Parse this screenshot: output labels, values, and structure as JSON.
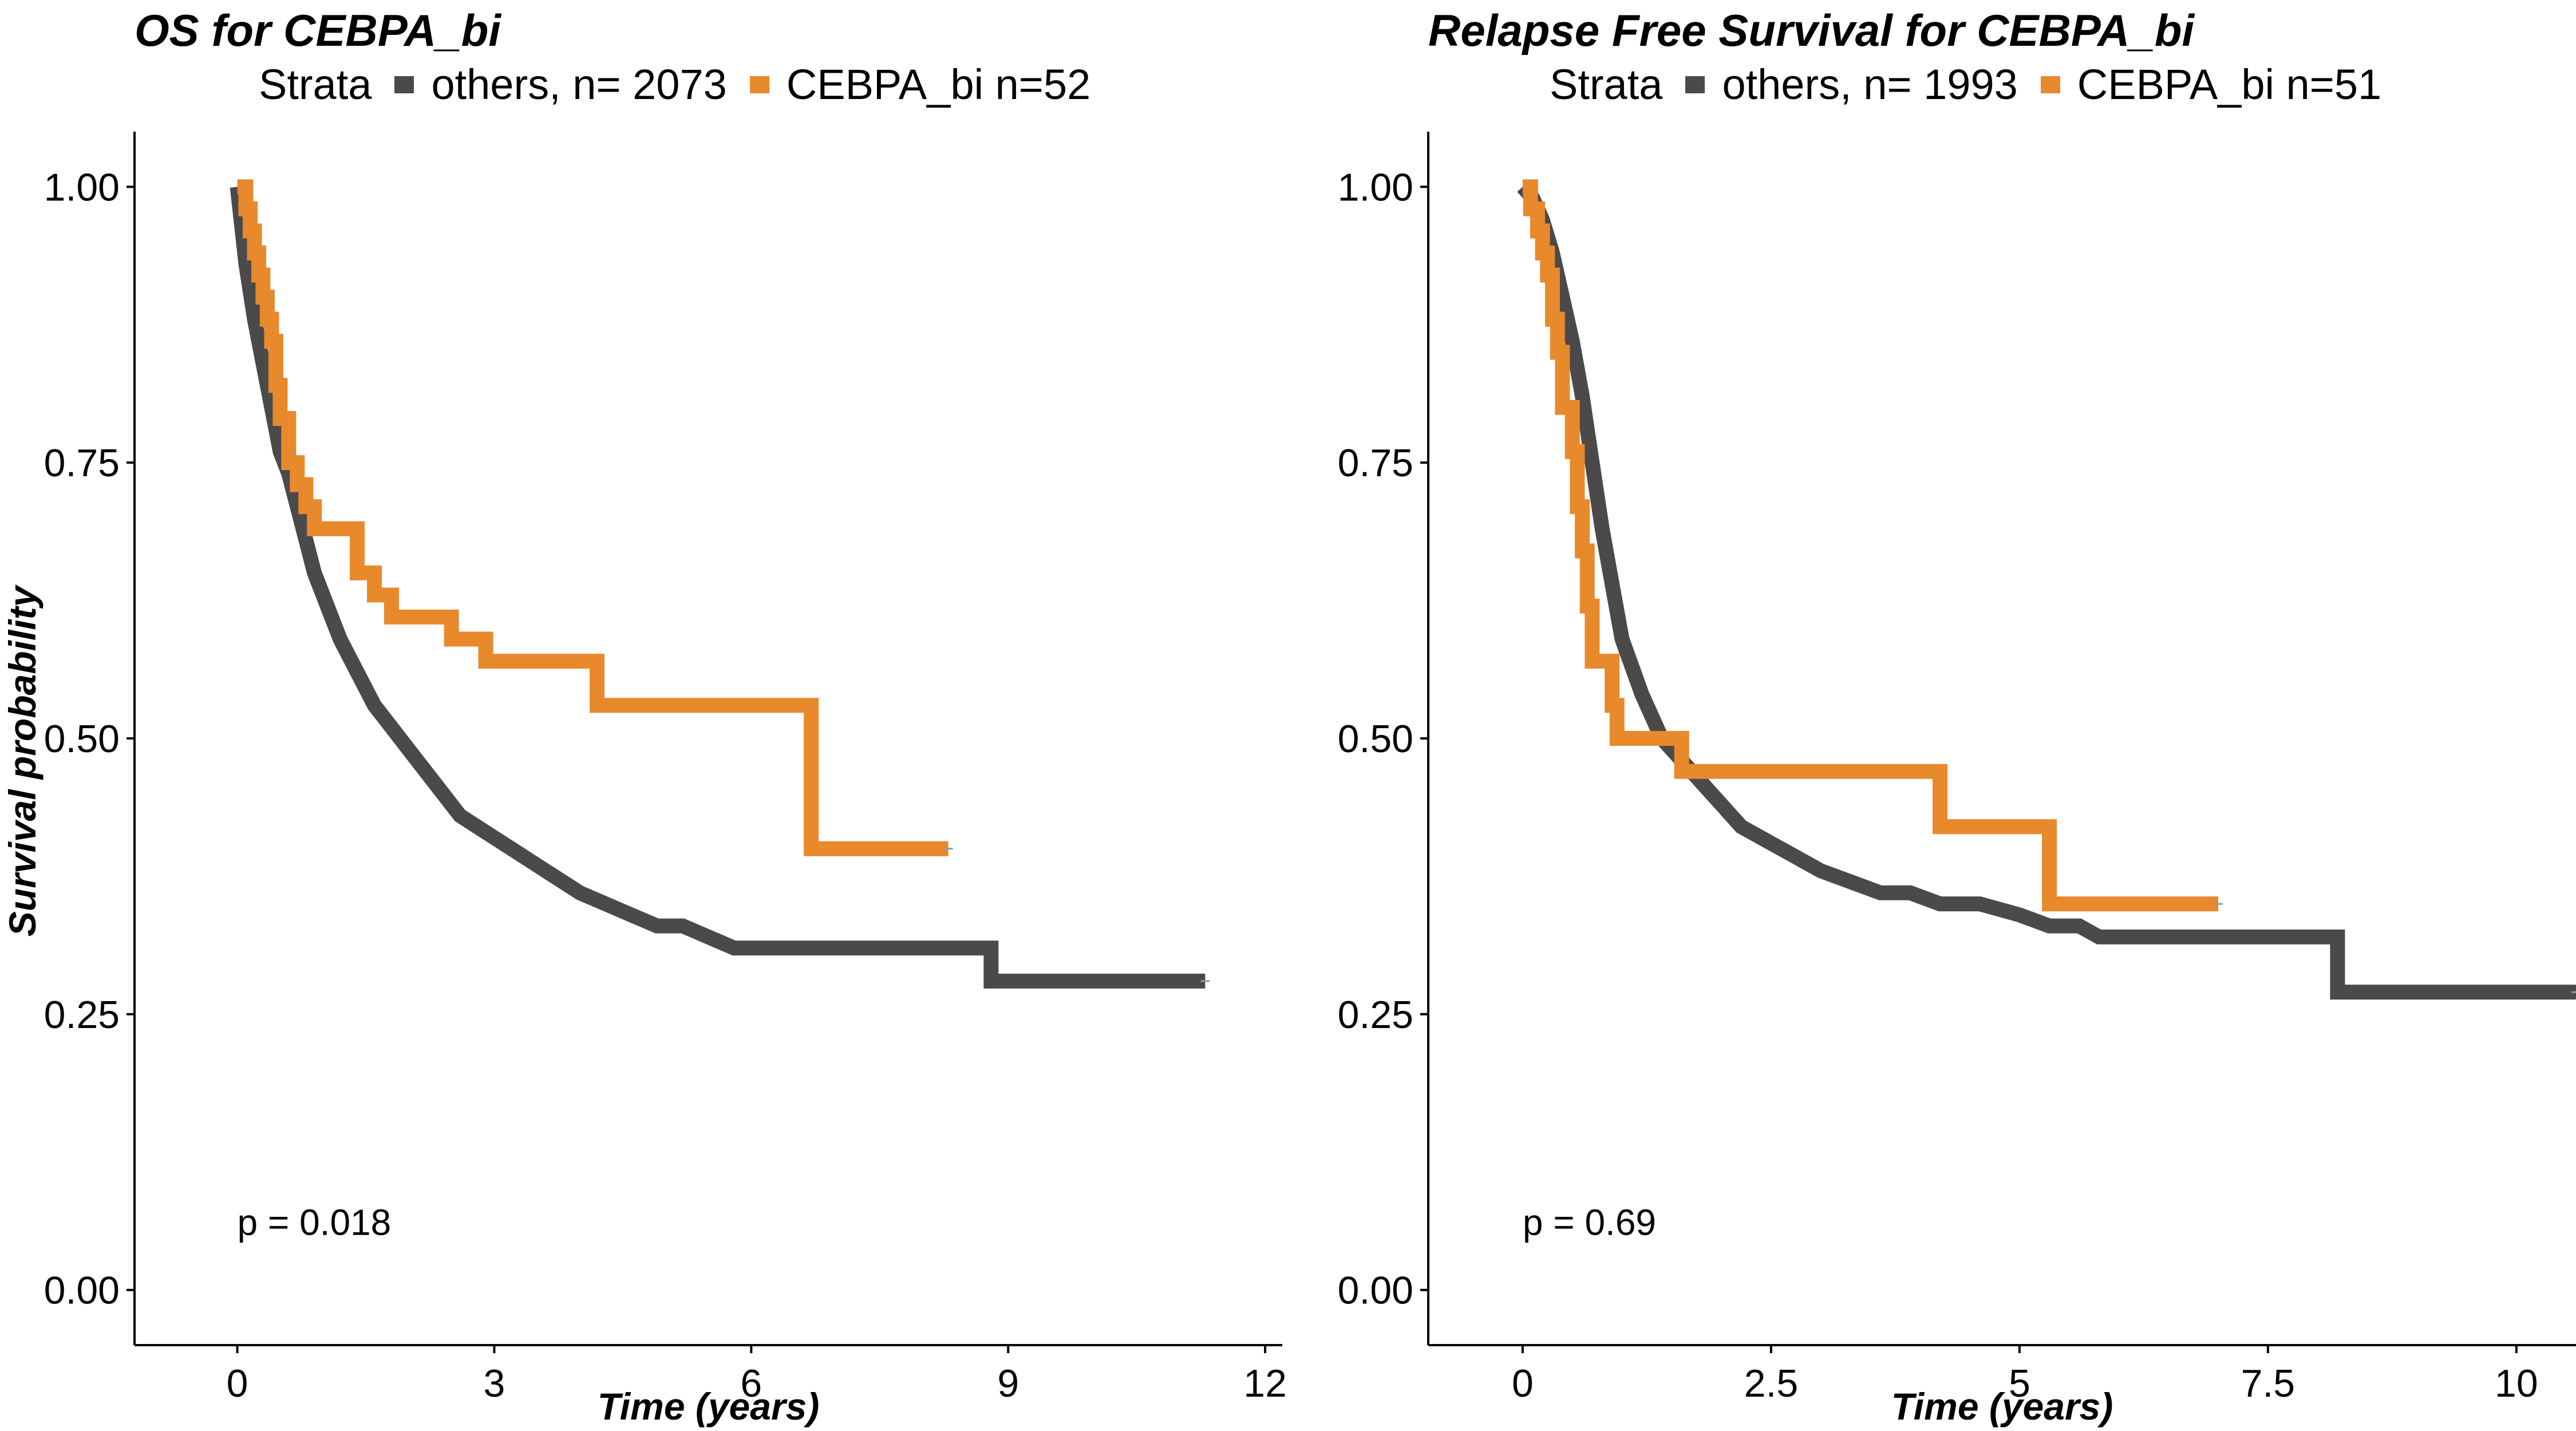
{
  "chart_data": [
    {
      "type": "line",
      "title": "OS  for  CEBPA_bi",
      "xlabel": "Time (years)",
      "ylabel": "Survival probability",
      "legend": {
        "title": "Strata",
        "placement": "top"
      },
      "xlim": [
        -1.2,
        12.2
      ],
      "ylim": [
        -0.05,
        1.05
      ],
      "xticks": [
        0,
        3,
        6,
        9,
        12
      ],
      "xtick_labels": [
        "0",
        "3",
        "6",
        "9",
        "12"
      ],
      "yticks": [
        0,
        0.25,
        0.5,
        0.75,
        1
      ],
      "ytick_labels": [
        "0.00",
        "0.25",
        "0.50",
        "0.75",
        "1.00"
      ],
      "grid": false,
      "annotation": "p = 0.018",
      "annotation_pos": [
        0,
        0.05
      ],
      "series": [
        {
          "name": "others, n= 2073",
          "color": "#4a4a4a",
          "points": [
            [
              0,
              1
            ],
            [
              0.1,
              0.93
            ],
            [
              0.2,
              0.88
            ],
            [
              0.3,
              0.84
            ],
            [
              0.4,
              0.8
            ],
            [
              0.5,
              0.76
            ],
            [
              0.6,
              0.74
            ],
            [
              0.7,
              0.71
            ],
            [
              0.8,
              0.68
            ],
            [
              0.9,
              0.65
            ],
            [
              1.0,
              0.63
            ],
            [
              1.2,
              0.59
            ],
            [
              1.4,
              0.56
            ],
            [
              1.6,
              0.53
            ],
            [
              1.8,
              0.51
            ],
            [
              2.0,
              0.49
            ],
            [
              2.2,
              0.47
            ],
            [
              2.4,
              0.45
            ],
            [
              2.6,
              0.43
            ],
            [
              2.8,
              0.42
            ],
            [
              3.0,
              0.41
            ],
            [
              3.2,
              0.4
            ],
            [
              3.4,
              0.39
            ],
            [
              3.6,
              0.38
            ],
            [
              3.8,
              0.37
            ],
            [
              4.0,
              0.36
            ],
            [
              4.3,
              0.35
            ],
            [
              4.6,
              0.34
            ],
            [
              4.9,
              0.33
            ],
            [
              5.2,
              0.33
            ],
            [
              5.5,
              0.32
            ],
            [
              5.8,
              0.31
            ],
            [
              6.0,
              0.31
            ],
            [
              8.8,
              0.31
            ],
            [
              8.8,
              0.28
            ],
            [
              11.3,
              0.28
            ]
          ],
          "step": false
        },
        {
          "name": "CEBPA_bi n=52",
          "color": "#e8892c",
          "points": [
            [
              0,
              1
            ],
            [
              0.1,
              1
            ],
            [
              0.1,
              0.98
            ],
            [
              0.15,
              0.98
            ],
            [
              0.15,
              0.96
            ],
            [
              0.2,
              0.96
            ],
            [
              0.2,
              0.94
            ],
            [
              0.25,
              0.94
            ],
            [
              0.25,
              0.92
            ],
            [
              0.3,
              0.92
            ],
            [
              0.3,
              0.9
            ],
            [
              0.35,
              0.9
            ],
            [
              0.35,
              0.88
            ],
            [
              0.4,
              0.88
            ],
            [
              0.4,
              0.86
            ],
            [
              0.45,
              0.86
            ],
            [
              0.45,
              0.82
            ],
            [
              0.5,
              0.82
            ],
            [
              0.5,
              0.79
            ],
            [
              0.6,
              0.79
            ],
            [
              0.6,
              0.75
            ],
            [
              0.7,
              0.75
            ],
            [
              0.7,
              0.73
            ],
            [
              0.8,
              0.73
            ],
            [
              0.8,
              0.71
            ],
            [
              0.9,
              0.71
            ],
            [
              0.9,
              0.69
            ],
            [
              1.4,
              0.69
            ],
            [
              1.4,
              0.65
            ],
            [
              1.6,
              0.65
            ],
            [
              1.6,
              0.63
            ],
            [
              1.8,
              0.63
            ],
            [
              1.8,
              0.61
            ],
            [
              2.5,
              0.61
            ],
            [
              2.5,
              0.59
            ],
            [
              2.9,
              0.59
            ],
            [
              2.9,
              0.57
            ],
            [
              4.2,
              0.57
            ],
            [
              4.2,
              0.53
            ],
            [
              6.7,
              0.53
            ],
            [
              6.7,
              0.4
            ],
            [
              8.3,
              0.4
            ]
          ],
          "step": false
        }
      ]
    },
    {
      "type": "line",
      "title": "Relapse Free Survival for  CEBPA_bi",
      "xlabel": "Time (years)",
      "ylabel": "",
      "legend": {
        "title": "Strata",
        "placement": "top"
      },
      "xlim": [
        -0.95,
        10.6
      ],
      "ylim": [
        -0.05,
        1.05
      ],
      "xticks": [
        0,
        2.5,
        5,
        7.5,
        10
      ],
      "xtick_labels": [
        "0",
        "2.5",
        "5",
        "7.5",
        "10"
      ],
      "yticks": [
        0,
        0.25,
        0.5,
        0.75,
        1
      ],
      "ytick_labels": [
        "0.00",
        "0.25",
        "0.50",
        "0.75",
        "1.00"
      ],
      "grid": false,
      "annotation": "p = 0.69",
      "annotation_pos": [
        0,
        0.05
      ],
      "series": [
        {
          "name": "others, n= 1993",
          "color": "#4a4a4a",
          "points": [
            [
              0,
              1
            ],
            [
              0.1,
              0.99
            ],
            [
              0.2,
              0.97
            ],
            [
              0.3,
              0.94
            ],
            [
              0.4,
              0.9
            ],
            [
              0.5,
              0.86
            ],
            [
              0.6,
              0.81
            ],
            [
              0.7,
              0.75
            ],
            [
              0.8,
              0.69
            ],
            [
              0.9,
              0.64
            ],
            [
              1.0,
              0.59
            ],
            [
              1.2,
              0.54
            ],
            [
              1.4,
              0.5
            ],
            [
              1.6,
              0.48
            ],
            [
              1.8,
              0.46
            ],
            [
              2.0,
              0.44
            ],
            [
              2.2,
              0.42
            ],
            [
              2.4,
              0.41
            ],
            [
              2.6,
              0.4
            ],
            [
              2.8,
              0.39
            ],
            [
              3.0,
              0.38
            ],
            [
              3.3,
              0.37
            ],
            [
              3.6,
              0.36
            ],
            [
              3.9,
              0.36
            ],
            [
              4.2,
              0.35
            ],
            [
              4.6,
              0.35
            ],
            [
              5.0,
              0.34
            ],
            [
              5.3,
              0.33
            ],
            [
              5.6,
              0.33
            ],
            [
              5.8,
              0.32
            ],
            [
              6.0,
              0.32
            ],
            [
              8.2,
              0.32
            ],
            [
              8.2,
              0.27
            ],
            [
              10.6,
              0.27
            ]
          ],
          "step": false
        },
        {
          "name": "CEBPA_bi n=51",
          "color": "#e8892c",
          "points": [
            [
              0,
              1
            ],
            [
              0.08,
              1
            ],
            [
              0.08,
              0.98
            ],
            [
              0.15,
              0.98
            ],
            [
              0.15,
              0.96
            ],
            [
              0.2,
              0.96
            ],
            [
              0.2,
              0.94
            ],
            [
              0.25,
              0.94
            ],
            [
              0.25,
              0.92
            ],
            [
              0.3,
              0.92
            ],
            [
              0.3,
              0.88
            ],
            [
              0.35,
              0.88
            ],
            [
              0.35,
              0.85
            ],
            [
              0.4,
              0.85
            ],
            [
              0.4,
              0.8
            ],
            [
              0.5,
              0.8
            ],
            [
              0.5,
              0.76
            ],
            [
              0.55,
              0.76
            ],
            [
              0.55,
              0.71
            ],
            [
              0.6,
              0.71
            ],
            [
              0.6,
              0.67
            ],
            [
              0.65,
              0.67
            ],
            [
              0.65,
              0.62
            ],
            [
              0.7,
              0.62
            ],
            [
              0.7,
              0.57
            ],
            [
              0.9,
              0.57
            ],
            [
              0.9,
              0.53
            ],
            [
              0.95,
              0.53
            ],
            [
              0.95,
              0.5
            ],
            [
              1.6,
              0.5
            ],
            [
              1.6,
              0.47
            ],
            [
              4.2,
              0.47
            ],
            [
              4.2,
              0.42
            ],
            [
              5.3,
              0.42
            ],
            [
              5.3,
              0.35
            ],
            [
              7.0,
              0.35
            ]
          ],
          "step": false
        }
      ]
    }
  ],
  "panels": [
    {
      "legend_items": [
        {
          "label": "others, n= 2073",
          "color": "#4a4a4a"
        },
        {
          "label": "CEBPA_bi n=52",
          "color": "#e8892c"
        }
      ]
    },
    {
      "legend_items": [
        {
          "label": "others, n= 1993",
          "color": "#4a4a4a"
        },
        {
          "label": "CEBPA_bi n=51",
          "color": "#e8892c"
        }
      ]
    }
  ]
}
